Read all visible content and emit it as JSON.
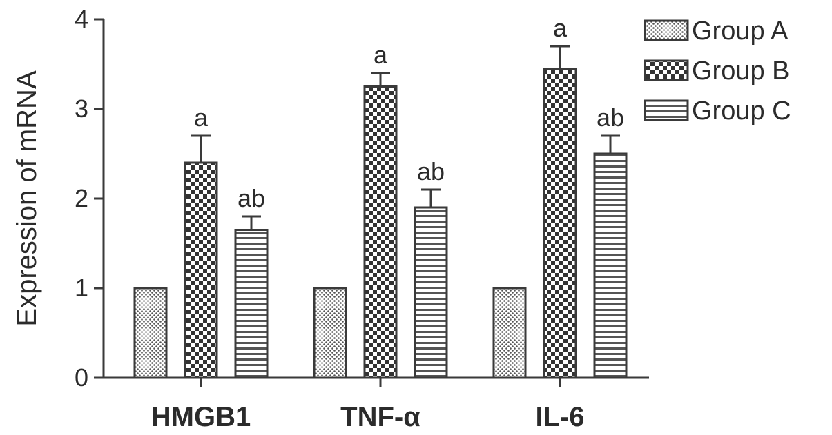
{
  "chart_data": {
    "type": "bar",
    "title": "",
    "xlabel": "",
    "ylabel": "Expression of mRNA",
    "ylim": [
      0,
      4
    ],
    "yticks": [
      "0",
      "1",
      "2",
      "3",
      "4"
    ],
    "categories": [
      "HMGB1",
      "TNF-α",
      "IL-6"
    ],
    "legend_position": "top-right",
    "series": [
      {
        "name": "Group A",
        "pattern": "dots",
        "values": [
          1.0,
          1.0,
          1.0
        ],
        "errors": [
          0,
          0,
          0
        ],
        "labels": [
          "",
          "",
          ""
        ]
      },
      {
        "name": "Group B",
        "pattern": "checker",
        "values": [
          2.4,
          3.25,
          3.45
        ],
        "errors": [
          0.3,
          0.15,
          0.25
        ],
        "labels": [
          "a",
          "a",
          "a"
        ]
      },
      {
        "name": "Group C",
        "pattern": "hstripes",
        "values": [
          1.65,
          1.9,
          2.5
        ],
        "errors": [
          0.15,
          0.2,
          0.2
        ],
        "labels": [
          "ab",
          "ab",
          "ab"
        ]
      }
    ]
  }
}
